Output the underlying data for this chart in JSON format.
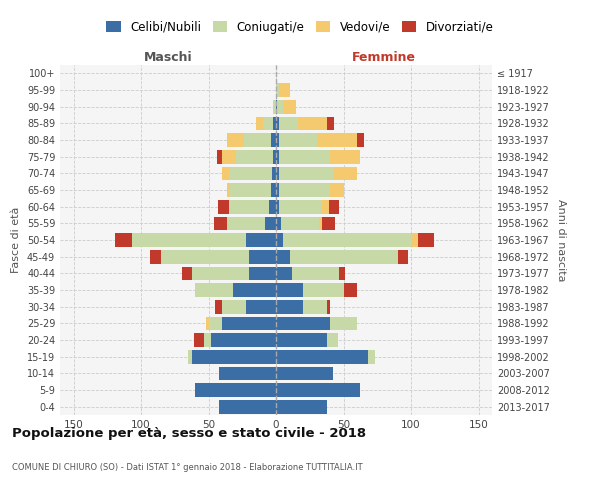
{
  "age_groups": [
    "0-4",
    "5-9",
    "10-14",
    "15-19",
    "20-24",
    "25-29",
    "30-34",
    "35-39",
    "40-44",
    "45-49",
    "50-54",
    "55-59",
    "60-64",
    "65-69",
    "70-74",
    "75-79",
    "80-84",
    "85-89",
    "90-94",
    "95-99",
    "100+"
  ],
  "birth_years": [
    "2013-2017",
    "2008-2012",
    "2003-2007",
    "1998-2002",
    "1993-1997",
    "1988-1992",
    "1983-1987",
    "1978-1982",
    "1973-1977",
    "1968-1972",
    "1963-1967",
    "1958-1962",
    "1953-1957",
    "1948-1952",
    "1943-1947",
    "1938-1942",
    "1933-1937",
    "1928-1932",
    "1923-1927",
    "1918-1922",
    "≤ 1917"
  ],
  "male": {
    "celibi": [
      42,
      60,
      42,
      62,
      48,
      40,
      22,
      32,
      20,
      20,
      22,
      8,
      5,
      4,
      3,
      2,
      4,
      2,
      0,
      0,
      0
    ],
    "coniugati": [
      0,
      0,
      0,
      3,
      5,
      10,
      18,
      28,
      42,
      65,
      85,
      28,
      30,
      30,
      32,
      28,
      20,
      8,
      2,
      0,
      0
    ],
    "vedovi": [
      0,
      0,
      0,
      0,
      0,
      2,
      0,
      0,
      0,
      0,
      0,
      0,
      0,
      2,
      5,
      10,
      12,
      5,
      0,
      0,
      0
    ],
    "divorziati": [
      0,
      0,
      0,
      0,
      8,
      0,
      5,
      0,
      8,
      8,
      12,
      10,
      8,
      0,
      0,
      4,
      0,
      0,
      0,
      0,
      0
    ]
  },
  "female": {
    "nubili": [
      38,
      62,
      42,
      68,
      38,
      40,
      20,
      20,
      12,
      10,
      5,
      4,
      2,
      2,
      2,
      2,
      2,
      2,
      1,
      0,
      0
    ],
    "coniugate": [
      0,
      0,
      0,
      5,
      8,
      20,
      18,
      30,
      35,
      80,
      95,
      28,
      32,
      38,
      40,
      38,
      28,
      14,
      4,
      2,
      0
    ],
    "vedove": [
      0,
      0,
      0,
      0,
      0,
      0,
      0,
      0,
      0,
      0,
      5,
      2,
      5,
      10,
      18,
      22,
      30,
      22,
      10,
      8,
      0
    ],
    "divorziate": [
      0,
      0,
      0,
      0,
      0,
      0,
      2,
      10,
      4,
      8,
      12,
      10,
      8,
      0,
      0,
      0,
      5,
      5,
      0,
      0,
      0
    ]
  },
  "colors": {
    "celibi": "#3a6ea5",
    "coniugati": "#c8d9a8",
    "vedovi": "#f5c96e",
    "divorziati": "#c0392b"
  },
  "title": "Popolazione per età, sesso e stato civile - 2018",
  "subtitle": "COMUNE DI CHIURO (SO) - Dati ISTAT 1° gennaio 2018 - Elaborazione TUTTITALIA.IT",
  "xlabel_left": "Maschi",
  "xlabel_right": "Femmine",
  "ylabel_left": "Fasce di età",
  "ylabel_right": "Anni di nascita",
  "xlim": 160,
  "legend_labels": [
    "Celibi/Nubili",
    "Coniugati/e",
    "Vedovi/e",
    "Divorziati/e"
  ],
  "bg_color": "#ffffff",
  "plot_bg": "#f5f5f5",
  "grid_color": "#cccccc"
}
